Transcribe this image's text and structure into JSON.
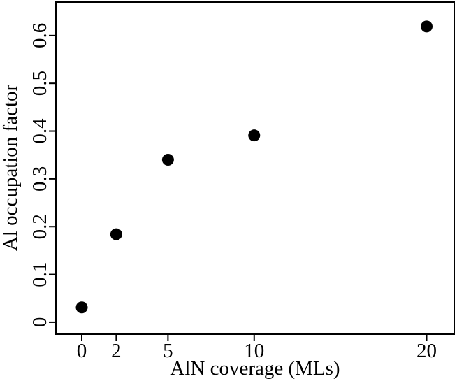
{
  "chart_data": {
    "type": "scatter",
    "xlabel": "AlN coverage (MLs)",
    "ylabel": "Al occupation factor",
    "x": [
      0,
      2,
      5,
      10,
      20
    ],
    "values": [
      0.031,
      0.184,
      0.34,
      0.391,
      0.619
    ],
    "color": "#000000",
    "xlim": [
      -1.5,
      21.6
    ],
    "ylim": [
      -0.025,
      0.67
    ],
    "xticks": [
      0,
      2,
      5,
      10,
      20
    ],
    "yticks": [
      0,
      0.1,
      0.2,
      0.3,
      0.4,
      0.5,
      0.6
    ]
  }
}
